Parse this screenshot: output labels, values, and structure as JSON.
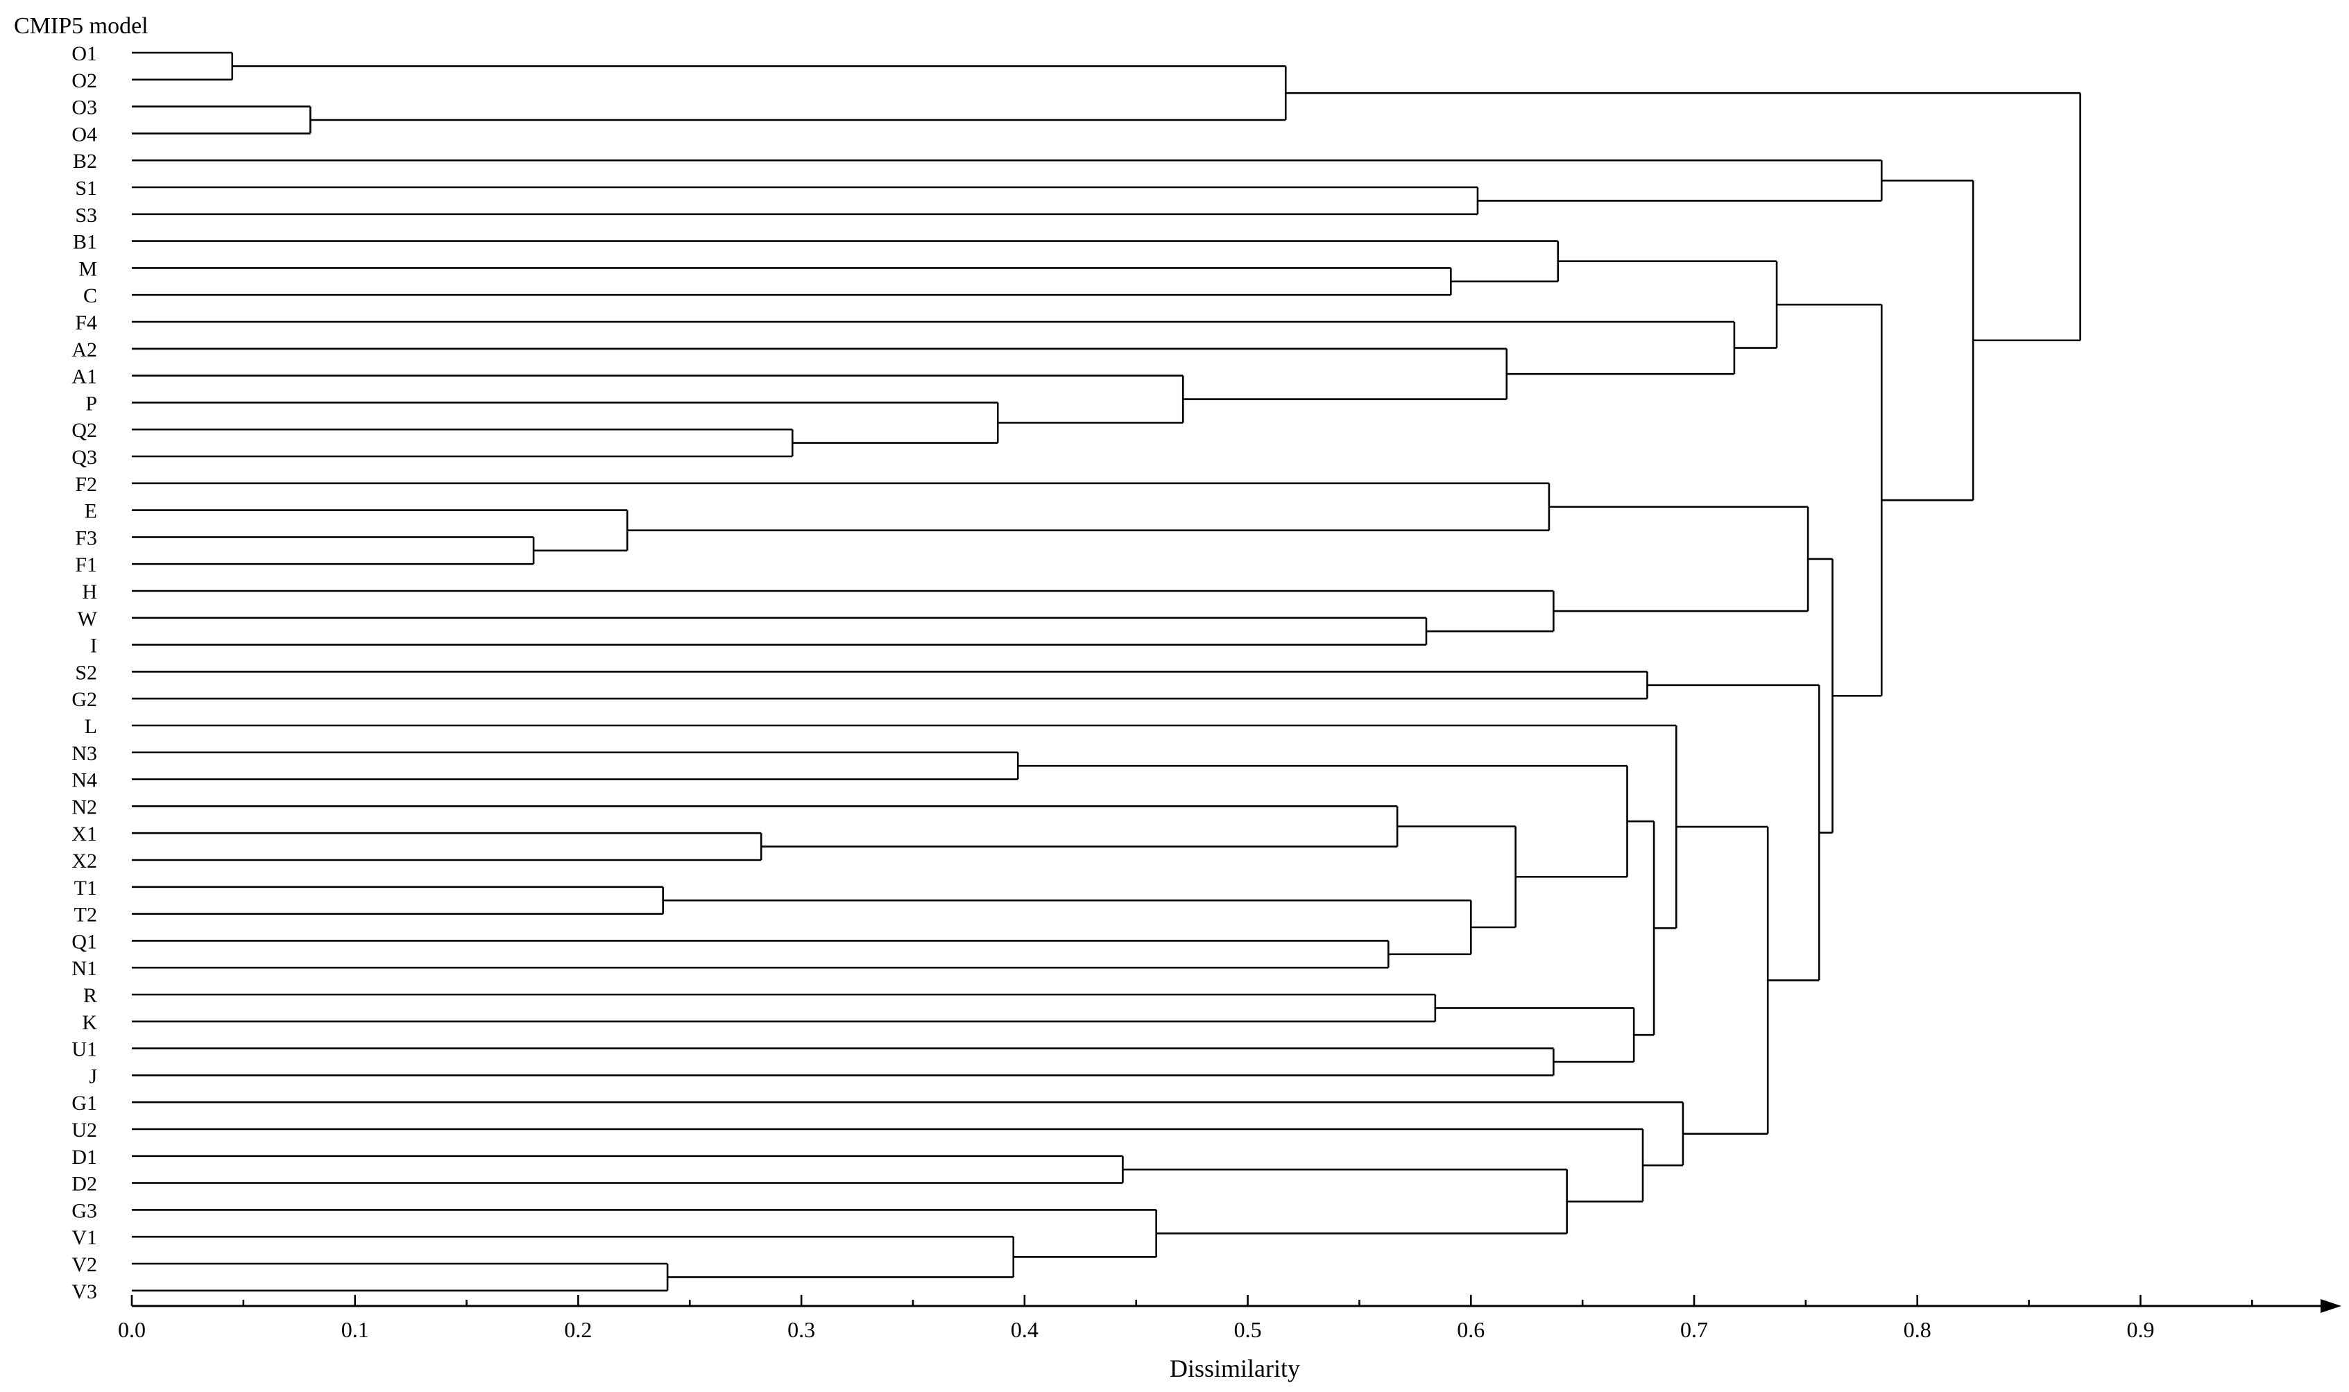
{
  "chart_data": {
    "type": "dendrogram",
    "ylabel": "CMIP5 model",
    "xlabel": "Dissimilarity",
    "xlim": [
      0.0,
      0.99
    ],
    "xticks": [
      0.0,
      0.1,
      0.2,
      0.3,
      0.4,
      0.5,
      0.6,
      0.7,
      0.8,
      0.9
    ],
    "xtick_labels": [
      "0.0",
      "0.1",
      "0.2",
      "0.3",
      "0.4",
      "0.5",
      "0.6",
      "0.7",
      "0.8",
      "0.9"
    ],
    "leaves": [
      "O1",
      "O2",
      "O3",
      "O4",
      "B2",
      "S1",
      "S3",
      "B1",
      "M",
      "C",
      "F4",
      "A2",
      "A1",
      "P",
      "Q2",
      "Q3",
      "F2",
      "E",
      "F3",
      "F1",
      "H",
      "W",
      "I",
      "S2",
      "G2",
      "L",
      "N3",
      "N4",
      "N2",
      "X1",
      "X2",
      "T1",
      "T2",
      "Q1",
      "N1",
      "R",
      "K",
      "U1",
      "J",
      "G1",
      "U2",
      "D1",
      "D2",
      "G3",
      "V1",
      "V2",
      "V3"
    ],
    "merges": [
      {
        "a": "O1",
        "b": "O2",
        "height": 0.045
      },
      {
        "a": "O3",
        "b": "O4",
        "height": 0.08
      },
      {
        "a": "F3",
        "b": "F1",
        "height": 0.18
      },
      {
        "a": "E",
        "b": "F3+F1",
        "height": 0.222
      },
      {
        "a": "T1",
        "b": "T2",
        "height": 0.238
      },
      {
        "a": "V2",
        "b": "V3",
        "height": 0.24
      },
      {
        "a": "X1",
        "b": "X2",
        "height": 0.282
      },
      {
        "a": "Q2",
        "b": "Q3",
        "height": 0.296
      },
      {
        "a": "P",
        "b": "Q2+Q3",
        "height": 0.388
      },
      {
        "a": "V1",
        "b": "V2+V3",
        "height": 0.395
      },
      {
        "a": "N3",
        "b": "N4",
        "height": 0.397
      },
      {
        "a": "D1",
        "b": "D2",
        "height": 0.444
      },
      {
        "a": "G3",
        "b": "V1+V2+V3",
        "height": 0.459
      },
      {
        "a": "A1",
        "b": "P+Q2+Q3",
        "height": 0.471
      },
      {
        "a": "O1+O2",
        "b": "O3+O4",
        "height": 0.517
      },
      {
        "a": "Q1",
        "b": "N1",
        "height": 0.563
      },
      {
        "a": "N2",
        "b": "X1+X2",
        "height": 0.567
      },
      {
        "a": "W",
        "b": "I",
        "height": 0.58
      },
      {
        "a": "R",
        "b": "K",
        "height": 0.584
      },
      {
        "a": "M",
        "b": "C",
        "height": 0.591
      },
      {
        "a": "T1+T2",
        "b": "Q1+N1",
        "height": 0.6
      },
      {
        "a": "S1",
        "b": "S3",
        "height": 0.603
      },
      {
        "a": "A2",
        "b": "A1+P+Q2+Q3",
        "height": 0.616
      },
      {
        "a": "N2+X1+X2",
        "b": "T1+T2+Q1+N1",
        "height": 0.62
      },
      {
        "a": "F2",
        "b": "E+F3+F1",
        "height": 0.635
      },
      {
        "a": "U1",
        "b": "J",
        "height": 0.637
      },
      {
        "a": "H",
        "b": "W+I",
        "height": 0.637
      },
      {
        "a": "B1",
        "b": "M+C",
        "height": 0.639
      },
      {
        "a": "D1+D2",
        "b": "G3+V1+V2+V3",
        "height": 0.643
      },
      {
        "a": "N3+N4",
        "b": "N2+X1+X2+T1+T2+Q1+N1",
        "height": 0.67
      },
      {
        "a": "R+K",
        "b": "U1+J",
        "height": 0.673
      },
      {
        "a": "U2",
        "b": "D1+D2+G3+V1+V2+V3",
        "height": 0.677
      },
      {
        "a": "S2",
        "b": "G2",
        "height": 0.679
      },
      {
        "a": "N3..N1",
        "b": "R+K+U1+J",
        "height": 0.682
      },
      {
        "a": "L",
        "b": "N3..J",
        "height": 0.692
      },
      {
        "a": "G1",
        "b": "U2..V3",
        "height": 0.695
      },
      {
        "a": "F4",
        "b": "A2+A1+P+Q2+Q3",
        "height": 0.718
      },
      {
        "a": "L..J",
        "b": "G1..V3",
        "height": 0.733
      },
      {
        "a": "B1+M+C",
        "b": "F4..Q3",
        "height": 0.737
      },
      {
        "a": "F2..F1",
        "b": "H+W+I",
        "height": 0.751
      },
      {
        "a": "S2+G2",
        "b": "L..V3",
        "height": 0.756
      },
      {
        "a": "F2..I",
        "b": "S2..V3",
        "height": 0.762
      },
      {
        "a": "B2",
        "b": "S1+S3",
        "height": 0.784
      },
      {
        "a": "B1..Q3",
        "b": "F2..V3",
        "height": 0.784
      },
      {
        "a": "B2+S1+S3",
        "b": "B1..V3",
        "height": 0.825
      },
      {
        "a": "O1..O4",
        "b": "B2..V3",
        "height": 0.873
      }
    ]
  }
}
